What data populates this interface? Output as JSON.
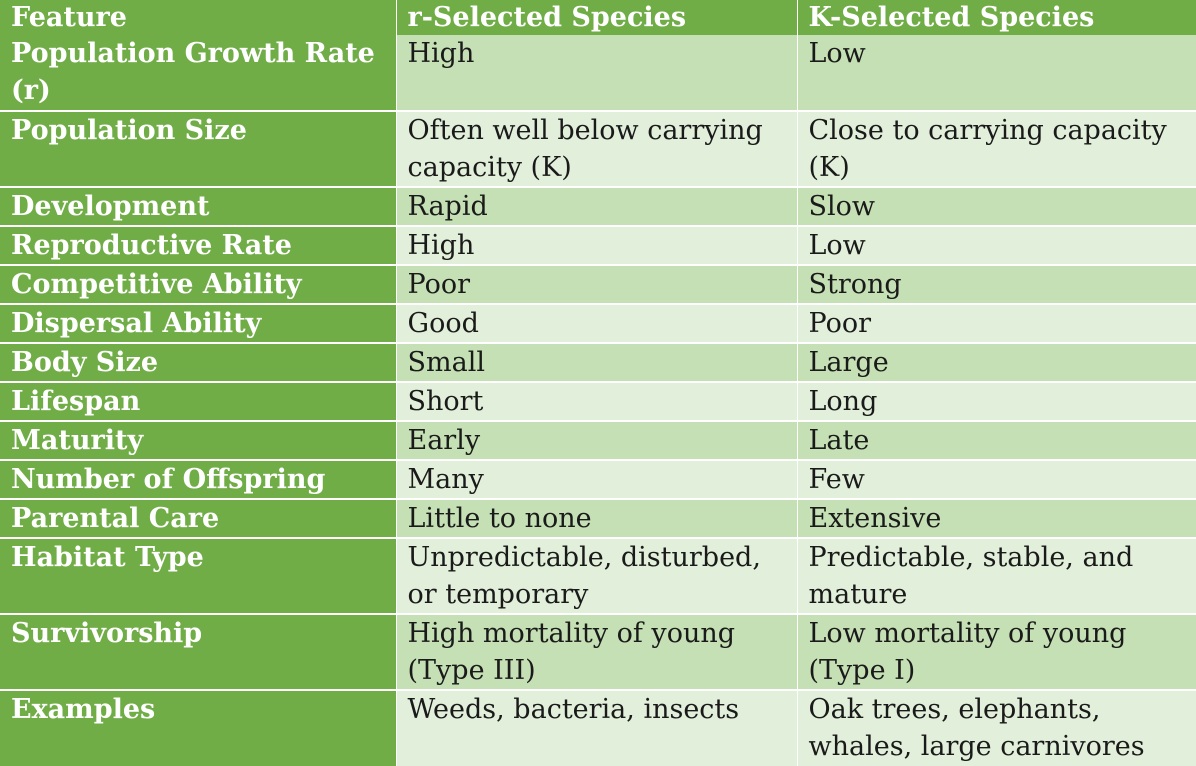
{
  "table": {
    "headers": [
      "Feature",
      "r-Selected Species",
      "K-Selected Species"
    ],
    "rows": [
      {
        "feature": "Population Growth Rate (r)",
        "r": "High",
        "k": "Low"
      },
      {
        "feature": "Population Size",
        "r": "Often well below carrying capacity (K)",
        "k": "Close to carrying capacity (K)"
      },
      {
        "feature": "Development",
        "r": "Rapid",
        "k": "Slow"
      },
      {
        "feature": "Reproductive Rate",
        "r": "High",
        "k": "Low"
      },
      {
        "feature": "Competitive Ability",
        "r": "Poor",
        "k": "Strong"
      },
      {
        "feature": "Dispersal Ability",
        "r": "Good",
        "k": "Poor"
      },
      {
        "feature": "Body Size",
        "r": "Small",
        "k": "Large"
      },
      {
        "feature": "Lifespan",
        "r": "Short",
        "k": "Long"
      },
      {
        "feature": "Maturity",
        "r": "Early",
        "k": "Late"
      },
      {
        "feature": "Number of Offspring",
        "r": "Many",
        "k": "Few"
      },
      {
        "feature": "Parental Care",
        "r": "Little to none",
        "k": "Extensive"
      },
      {
        "feature": "Habitat Type",
        "r": "Unpredictable, disturbed, or temporary",
        "k": "Predictable, stable, and mature"
      },
      {
        "feature": "Survivorship",
        "r": "High mortality of young (Type III)",
        "k": "Low mortality of young (Type I)"
      },
      {
        "feature": "Examples",
        "r": "Weeds, bacteria, insects",
        "k": "Oak trees, elephants, whales, large carnivores"
      }
    ]
  }
}
